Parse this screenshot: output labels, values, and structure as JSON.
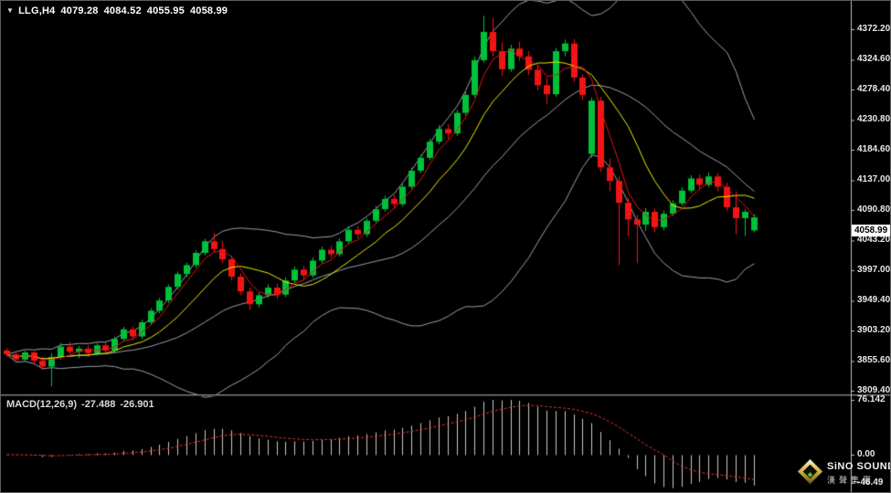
{
  "header": {
    "dropdown_icon": "▼",
    "symbol": "LLG,H4",
    "open": "4079.28",
    "high": "4084.52",
    "low": "4055.95",
    "close": "4058.99"
  },
  "price_axis": {
    "labels": [
      "4372.20",
      "4324.60",
      "4278.40",
      "4230.80",
      "4184.60",
      "4137.00",
      "4090.80",
      "4043.20",
      "3997.00",
      "3949.40",
      "3903.20",
      "3855.60",
      "3809.40"
    ],
    "current_price": "4058.99"
  },
  "macd_panel": {
    "label": "MACD(12,26,9)",
    "value": "-27.488",
    "signal_value": "-26.901",
    "axis_labels": [
      "76.142",
      "0.00",
      "-46.49"
    ]
  },
  "logo": {
    "name": "SiNO SOUND",
    "subtitle": "漢聲集團"
  },
  "colors": {
    "background": "#000000",
    "bull": "#00c03a",
    "bear": "#f21414",
    "band": "#9aa3af",
    "ma_fast": "#e81414",
    "ma_slow": "#efec00",
    "axis_line": "#c0c0c0",
    "axis_text": "#e8e8e8",
    "badge_bg": "#ffffff",
    "badge_text": "#000000",
    "histogram": "#c9c9c9",
    "macd_signal": "#e83030",
    "separator": "#8a8a8a"
  },
  "chart_data": {
    "type": "candlestick",
    "symbol": "LLG",
    "timeframe": "H4",
    "last_bar": {
      "open": 4079.28,
      "high": 4084.52,
      "low": 4055.95,
      "close": 4058.99
    },
    "y_axis": {
      "top": 4372.2,
      "bottom": 3809.4,
      "tick_values": [
        4372.2,
        4324.6,
        4278.4,
        4230.8,
        4184.6,
        4137.0,
        4090.8,
        4043.2,
        3997.0,
        3949.4,
        3903.2,
        3855.6,
        3809.4
      ]
    },
    "candles": [
      [
        3872,
        3876,
        3862,
        3866
      ],
      [
        3866,
        3870,
        3854,
        3858
      ],
      [
        3858,
        3872,
        3855,
        3869
      ],
      [
        3869,
        3871,
        3850,
        3856
      ],
      [
        3856,
        3862,
        3842,
        3847
      ],
      [
        3847,
        3868,
        3816,
        3862
      ],
      [
        3862,
        3884,
        3858,
        3878
      ],
      [
        3878,
        3886,
        3864,
        3870
      ],
      [
        3870,
        3879,
        3860,
        3875
      ],
      [
        3875,
        3880,
        3862,
        3868
      ],
      [
        3868,
        3884,
        3864,
        3880
      ],
      [
        3880,
        3885,
        3866,
        3872
      ],
      [
        3872,
        3894,
        3868,
        3890
      ],
      [
        3890,
        3909,
        3886,
        3905
      ],
      [
        3905,
        3910,
        3888,
        3894
      ],
      [
        3894,
        3920,
        3890,
        3916
      ],
      [
        3916,
        3938,
        3912,
        3934
      ],
      [
        3934,
        3954,
        3930,
        3950
      ],
      [
        3950,
        3975,
        3946,
        3971
      ],
      [
        3971,
        3995,
        3967,
        3991
      ],
      [
        3991,
        4009,
        3986,
        4005
      ],
      [
        4005,
        4028,
        4001,
        4024
      ],
      [
        4024,
        4046,
        4020,
        4042
      ],
      [
        4042,
        4055,
        4024,
        4030
      ],
      [
        4030,
        4042,
        4008,
        4014
      ],
      [
        4014,
        4020,
        3981,
        3987
      ],
      [
        3987,
        3992,
        3958,
        3964
      ],
      [
        3964,
        3970,
        3935,
        3944
      ],
      [
        3944,
        3962,
        3939,
        3958
      ],
      [
        3958,
        3975,
        3954,
        3970
      ],
      [
        3970,
        3976,
        3952,
        3959
      ],
      [
        3959,
        3986,
        3955,
        3981
      ],
      [
        3981,
        4003,
        3977,
        3998
      ],
      [
        3998,
        4004,
        3982,
        3989
      ],
      [
        3989,
        4017,
        3985,
        4012
      ],
      [
        4012,
        4034,
        4008,
        4029
      ],
      [
        4029,
        4035,
        4016,
        4022
      ],
      [
        4022,
        4047,
        4018,
        4042
      ],
      [
        4042,
        4065,
        4038,
        4060
      ],
      [
        4060,
        4066,
        4047,
        4053
      ],
      [
        4053,
        4078,
        4049,
        4074
      ],
      [
        4074,
        4097,
        4070,
        4092
      ],
      [
        4092,
        4113,
        4088,
        4108
      ],
      [
        4108,
        4114,
        4093,
        4100
      ],
      [
        4100,
        4132,
        4096,
        4127
      ],
      [
        4127,
        4157,
        4123,
        4152
      ],
      [
        4152,
        4177,
        4148,
        4172
      ],
      [
        4172,
        4202,
        4168,
        4197
      ],
      [
        4197,
        4223,
        4193,
        4217
      ],
      [
        4217,
        4224,
        4201,
        4210
      ],
      [
        4210,
        4247,
        4206,
        4242
      ],
      [
        4242,
        4276,
        4238,
        4270
      ],
      [
        4270,
        4330,
        4266,
        4324
      ],
      [
        4324,
        4393,
        4320,
        4368
      ],
      [
        4368,
        4390,
        4330,
        4338
      ],
      [
        4338,
        4352,
        4300,
        4310
      ],
      [
        4310,
        4348,
        4306,
        4342
      ],
      [
        4342,
        4353,
        4323,
        4330
      ],
      [
        4330,
        4338,
        4301,
        4309
      ],
      [
        4309,
        4316,
        4277,
        4285
      ],
      [
        4285,
        4297,
        4256,
        4271
      ],
      [
        4271,
        4343,
        4267,
        4338
      ],
      [
        4338,
        4356,
        4330,
        4350
      ],
      [
        4350,
        4357,
        4290,
        4297
      ],
      [
        4297,
        4302,
        4262,
        4270
      ],
      [
        4178,
        4266,
        4172,
        4261
      ],
      [
        4261,
        4267,
        4150,
        4157
      ],
      [
        4157,
        4171,
        4120,
        4136
      ],
      [
        4136,
        4143,
        4005,
        4102
      ],
      [
        4102,
        4110,
        4050,
        4076
      ],
      [
        4076,
        4083,
        4008,
        4068
      ],
      [
        4068,
        4094,
        4058,
        4088
      ],
      [
        4088,
        4093,
        4056,
        4064
      ],
      [
        4064,
        4090,
        4059,
        4085
      ],
      [
        4085,
        4106,
        4081,
        4101
      ],
      [
        4101,
        4126,
        4097,
        4121
      ],
      [
        4121,
        4145,
        4117,
        4140
      ],
      [
        4140,
        4146,
        4123,
        4130
      ],
      [
        4130,
        4149,
        4126,
        4143
      ],
      [
        4143,
        4148,
        4120,
        4127
      ],
      [
        4127,
        4133,
        4089,
        4095
      ],
      [
        4095,
        4120,
        4053,
        4078
      ],
      [
        4078,
        4092,
        4050,
        4088
      ],
      [
        4079.28,
        4084.52,
        4055.95,
        4058.99,
        1
      ]
    ],
    "overlays": [
      {
        "type": "bollinger",
        "period": 20,
        "deviation": 2,
        "color": "#9aa3af"
      },
      {
        "type": "ma",
        "period": 4,
        "color": "#e81414"
      },
      {
        "type": "ma",
        "period": 9,
        "color": "#efec00"
      }
    ],
    "indicator": {
      "type": "macd",
      "fast": 12,
      "slow": 26,
      "signal": 9,
      "current": -27.488,
      "current_signal": -26.901,
      "axis": {
        "max": 76.142,
        "zero": 0.0,
        "min": -46.49
      }
    }
  }
}
